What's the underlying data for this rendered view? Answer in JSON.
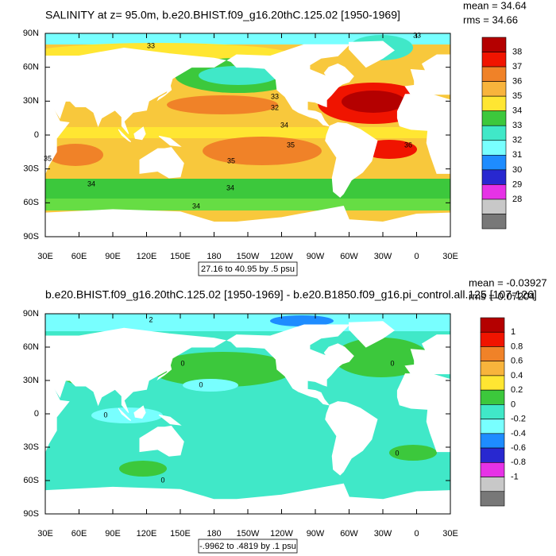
{
  "panels": [
    {
      "title": "SALINITY at z=  95.0m, b.e20.BHIST.f09_g16.20thC.125.02 [1950-1969]",
      "stats": [
        "mean = 34.64",
        "rms = 34.66"
      ],
      "lat_labels": [
        "90N",
        "60N",
        "30N",
        "0",
        "30S",
        "60S",
        "90S"
      ],
      "lon_labels": [
        "30E",
        "60E",
        "90E",
        "120E",
        "150E",
        "180",
        "150W",
        "120W",
        "90W",
        "60W",
        "30W",
        "0",
        "30E"
      ],
      "contour_info": "27.16 to 40.95 by .5 psu",
      "contour_labels": [
        "33",
        "33",
        "33",
        "32",
        "34",
        "35",
        "35",
        "36",
        "35",
        "34",
        "34",
        "34"
      ],
      "colorbar": {
        "labels": [
          "38",
          "37",
          "36",
          "35",
          "34",
          "33",
          "32",
          "31",
          "30",
          "29",
          "28"
        ],
        "colors": [
          "#b40000",
          "#f01400",
          "#f08228",
          "#f8b43c",
          "#ffe632",
          "#3cc83c",
          "#40e8c8",
          "#78ffff",
          "#1e8cff",
          "#2828d0",
          "#e632e6",
          "#c8c8c8",
          "#787878"
        ]
      }
    },
    {
      "title": "b.e20.BHIST.f09_g16.20thC.125.02 [1950-1969] - b.e20.B1850.f09_g16.pi_control.all.125 [107-126]",
      "stats": [
        "mean = -0.03927",
        "rms = 0.07204"
      ],
      "lat_labels": [
        "90N",
        "60N",
        "30N",
        "0",
        "30S",
        "60S",
        "90S"
      ],
      "lon_labels": [
        "30E",
        "60E",
        "90E",
        "120E",
        "150E",
        "180",
        "150W",
        "120W",
        "90W",
        "60W",
        "30W",
        "0",
        "30E"
      ],
      "contour_info": "-.9962 to .4819 by .1 psu",
      "contour_labels": [
        "2",
        "0",
        "0",
        "0",
        "0",
        "0",
        "0"
      ],
      "colorbar": {
        "labels": [
          "1",
          "0.8",
          "0.6",
          "0.4",
          "0.2",
          "0",
          "-0.2",
          "-0.4",
          "-0.6",
          "-0.8",
          "-1"
        ],
        "colors": [
          "#b40000",
          "#f01400",
          "#f08228",
          "#f8b43c",
          "#ffe632",
          "#3cc83c",
          "#40e8c8",
          "#78ffff",
          "#1e8cff",
          "#2828d0",
          "#e632e6",
          "#c8c8c8",
          "#787878"
        ]
      }
    }
  ]
}
